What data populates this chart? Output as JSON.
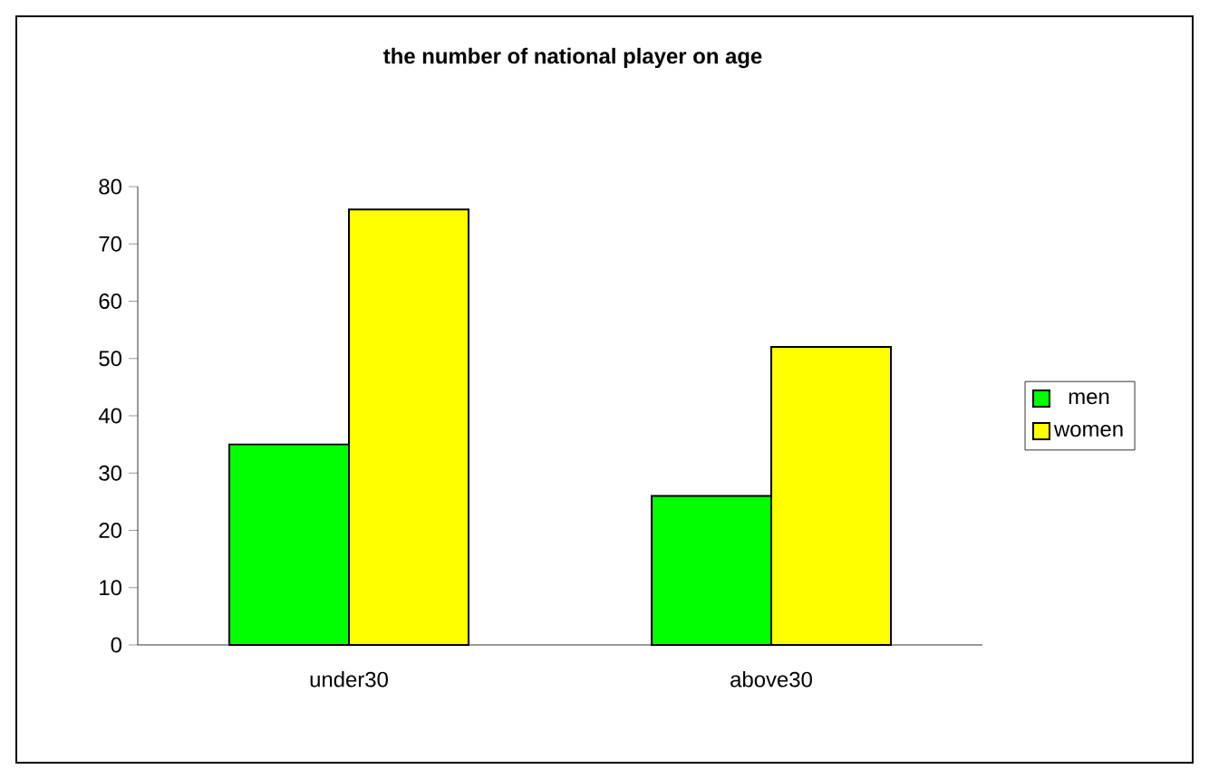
{
  "chart_data": {
    "type": "bar",
    "title": "the number of national player on age",
    "categories": [
      "under30",
      "above30"
    ],
    "series": [
      {
        "name": "men",
        "color": "#00ff00",
        "values": [
          35,
          26
        ]
      },
      {
        "name": "women",
        "color": "#ffff00",
        "values": [
          76,
          52
        ]
      }
    ],
    "ylim": [
      0,
      80
    ],
    "yticks": [
      0,
      10,
      20,
      30,
      40,
      50,
      60,
      70,
      80
    ],
    "legend": "right"
  }
}
